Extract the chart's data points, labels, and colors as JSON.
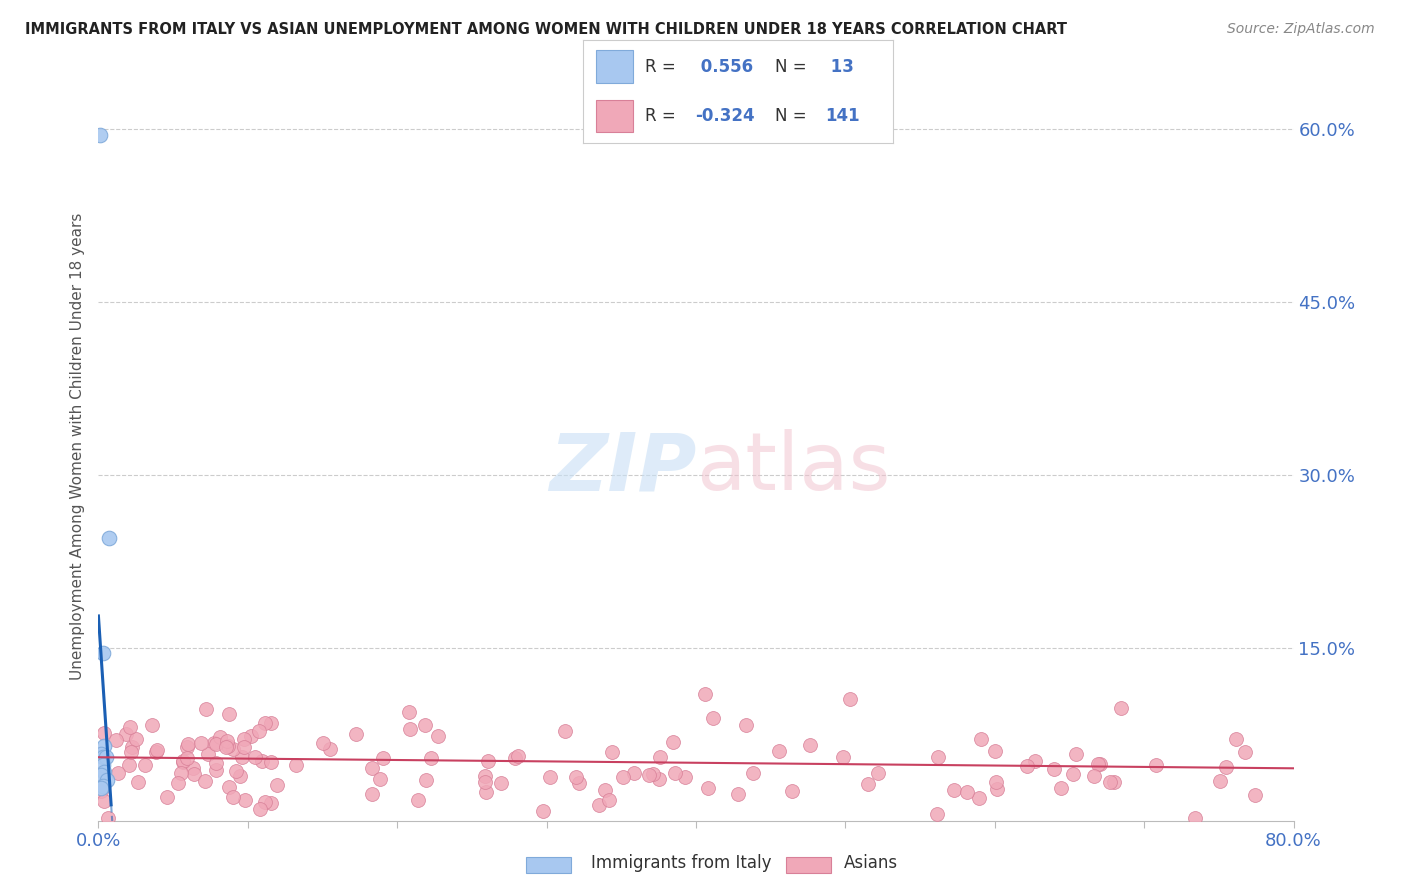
{
  "title": "IMMIGRANTS FROM ITALY VS ASIAN UNEMPLOYMENT AMONG WOMEN WITH CHILDREN UNDER 18 YEARS CORRELATION CHART",
  "source": "Source: ZipAtlas.com",
  "ylabel": "Unemployment Among Women with Children Under 18 years",
  "xlim": [
    0.0,
    0.8
  ],
  "ylim": [
    0.0,
    0.65
  ],
  "xtick_positions": [
    0.0,
    0.1,
    0.2,
    0.3,
    0.4,
    0.5,
    0.6,
    0.7,
    0.8
  ],
  "xtick_labels": [
    "0.0%",
    "",
    "",
    "",
    "",
    "",
    "",
    "",
    "80.0%"
  ],
  "ytick_vals_right": [
    0.6,
    0.45,
    0.3,
    0.15
  ],
  "ytick_labels_right": [
    "60.0%",
    "45.0%",
    "30.0%",
    "15.0%"
  ],
  "italy_color": "#a8c8f0",
  "italy_edge": "#80aada",
  "asia_color": "#f0a8b8",
  "asia_edge": "#d88098",
  "trend_italy_color": "#1a5fb4",
  "trend_asia_color": "#c84060",
  "legend_italy_R": "0.556",
  "legend_italy_N": "13",
  "legend_asia_R": "-0.324",
  "legend_asia_N": "141",
  "italy_x": [
    0.001,
    0.007,
    0.003,
    0.004,
    0.002,
    0.003,
    0.005,
    0.003,
    0.004,
    0.002,
    0.006,
    0.003,
    0.002
  ],
  "italy_y": [
    0.595,
    0.245,
    0.145,
    0.065,
    0.058,
    0.055,
    0.055,
    0.048,
    0.042,
    0.04,
    0.035,
    0.03,
    0.028
  ],
  "background_color": "#ffffff",
  "grid_color": "#cccccc",
  "watermark_color_zip": "#c8dff5",
  "watermark_color_atlas": "#f0c0cc"
}
